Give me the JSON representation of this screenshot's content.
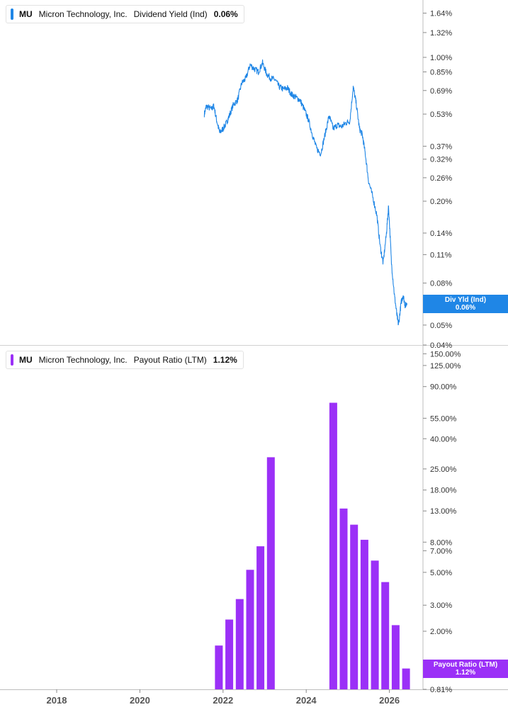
{
  "panels": {
    "top": {
      "ticker": "MU",
      "company": "Micron Technology, Inc.",
      "metric": "Dividend Yield (Ind)",
      "value": "0.06%",
      "color": "#1f86e6",
      "tag_label": "Div Yld (Ind)",
      "tag_value": "0.06%"
    },
    "bottom": {
      "ticker": "MU",
      "company": "Micron Technology, Inc.",
      "metric": "Payout Ratio (LTM)",
      "value": "1.12%",
      "color": "#9b30f7",
      "tag_label": "Payout Ratio (LTM)",
      "tag_value": "1.12%"
    }
  },
  "chart_data": [
    {
      "type": "line",
      "name": "Dividend Yield (Ind)",
      "scale": "log",
      "ylim": [
        0.04,
        1.9
      ],
      "y_tick_labels": [
        "1.64%",
        "1.32%",
        "1.00%",
        "0.85%",
        "0.69%",
        "0.53%",
        "0.37%",
        "0.32%",
        "0.26%",
        "0.20%",
        "0.14%",
        "0.11%",
        "0.08%",
        "0.05%",
        "0.04%"
      ],
      "x_tick_labels": [
        "2018",
        "2020",
        "2022",
        "2024",
        "2026"
      ],
      "points": [
        [
          2021.55,
          0.53
        ],
        [
          2021.6,
          0.58
        ],
        [
          2021.72,
          0.56
        ],
        [
          2021.78,
          0.58
        ],
        [
          2021.85,
          0.49
        ],
        [
          2021.92,
          0.43
        ],
        [
          2022.0,
          0.45
        ],
        [
          2022.08,
          0.48
        ],
        [
          2022.15,
          0.52
        ],
        [
          2022.25,
          0.59
        ],
        [
          2022.35,
          0.62
        ],
        [
          2022.45,
          0.75
        ],
        [
          2022.55,
          0.79
        ],
        [
          2022.65,
          0.92
        ],
        [
          2022.75,
          0.88
        ],
        [
          2022.85,
          0.85
        ],
        [
          2022.95,
          0.94
        ],
        [
          2023.05,
          0.83
        ],
        [
          2023.15,
          0.79
        ],
        [
          2023.25,
          0.78
        ],
        [
          2023.35,
          0.72
        ],
        [
          2023.45,
          0.7
        ],
        [
          2023.55,
          0.71
        ],
        [
          2023.65,
          0.66
        ],
        [
          2023.75,
          0.64
        ],
        [
          2023.85,
          0.62
        ],
        [
          2023.95,
          0.56
        ],
        [
          2024.05,
          0.5
        ],
        [
          2024.15,
          0.42
        ],
        [
          2024.25,
          0.36
        ],
        [
          2024.35,
          0.34
        ],
        [
          2024.45,
          0.42
        ],
        [
          2024.55,
          0.52
        ],
        [
          2024.65,
          0.45
        ],
        [
          2024.75,
          0.47
        ],
        [
          2024.85,
          0.46
        ],
        [
          2024.95,
          0.48
        ],
        [
          2025.05,
          0.49
        ],
        [
          2025.13,
          0.72
        ],
        [
          2025.2,
          0.6
        ],
        [
          2025.28,
          0.45
        ],
        [
          2025.35,
          0.42
        ],
        [
          2025.42,
          0.34
        ],
        [
          2025.5,
          0.25
        ],
        [
          2025.6,
          0.21
        ],
        [
          2025.7,
          0.17
        ],
        [
          2025.78,
          0.12
        ],
        [
          2025.85,
          0.1
        ],
        [
          2025.93,
          0.14
        ],
        [
          2025.98,
          0.19
        ],
        [
          2026.05,
          0.1
        ],
        [
          2026.12,
          0.07
        ],
        [
          2026.18,
          0.056
        ],
        [
          2026.22,
          0.05
        ],
        [
          2026.28,
          0.064
        ],
        [
          2026.33,
          0.07
        ],
        [
          2026.38,
          0.062
        ],
        [
          2026.42,
          0.064
        ]
      ]
    },
    {
      "type": "bar",
      "name": "Payout Ratio (LTM)",
      "scale": "log",
      "ylim": [
        0.81,
        170
      ],
      "y_tick_labels": [
        "150.00%",
        "125.00%",
        "90.00%",
        "55.00%",
        "40.00%",
        "25.00%",
        "18.00%",
        "13.00%",
        "8.00%",
        "7.00%",
        "5.00%",
        "3.00%",
        "2.00%",
        "0.81%"
      ],
      "x_tick_labels": [
        "2018",
        "2020",
        "2022",
        "2024",
        "2026"
      ],
      "x": [
        2021.9,
        2022.15,
        2022.4,
        2022.65,
        2022.9,
        2023.15,
        2024.65,
        2024.9,
        2025.15,
        2025.4,
        2025.65,
        2025.9,
        2026.15,
        2026.4
      ],
      "values": [
        1.6,
        2.4,
        3.3,
        5.2,
        7.5,
        30.0,
        70.0,
        13.5,
        10.5,
        8.3,
        6.0,
        4.3,
        2.2,
        1.12
      ]
    }
  ]
}
